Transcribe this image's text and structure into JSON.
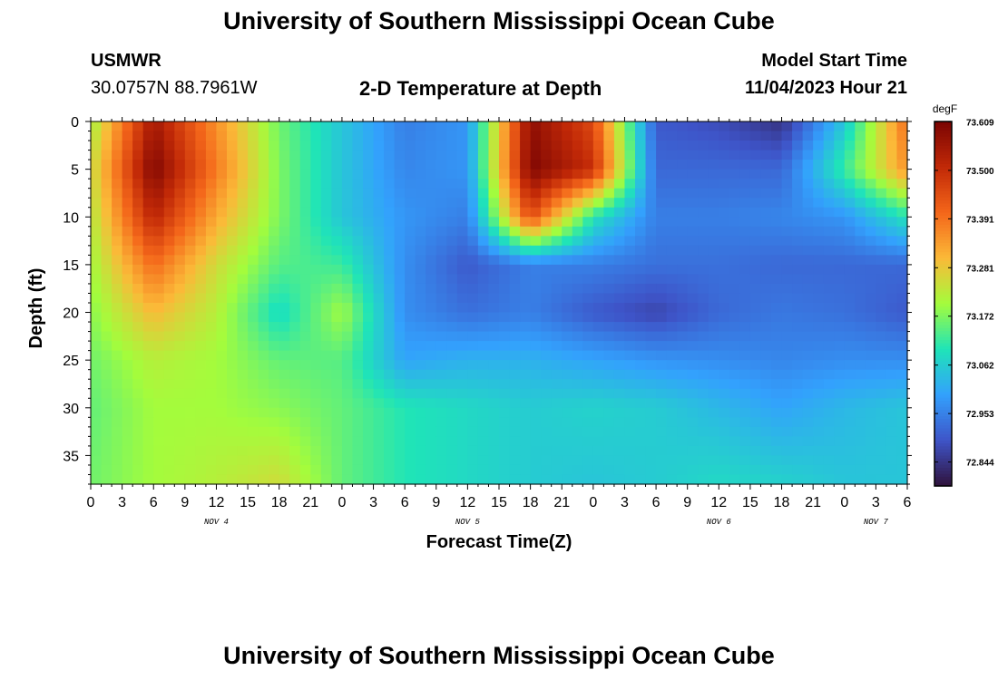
{
  "header": {
    "title": "University of Southern Mississippi Ocean Cube",
    "station": "USMWR",
    "coordinates": "30.0757N  88.7961W",
    "plot_title": "2-D Temperature at Depth",
    "model_start_label": "Model Start Time",
    "model_start_time": "11/04/2023 Hour 21"
  },
  "footer": {
    "title": "University of Southern Mississippi Ocean Cube"
  },
  "colors": {
    "colormap": [
      "#30123b",
      "#3e54c8",
      "#33a1fd",
      "#1fe4b8",
      "#a4fc3c",
      "#fbb938",
      "#f4661a",
      "#c12907",
      "#7a0403"
    ]
  },
  "chart_data": {
    "type": "heatmap",
    "xlabel": "Forecast Time(Z)",
    "ylabel": "Depth (ft)",
    "xlim": [
      0,
      78
    ],
    "ylim": [
      0,
      38
    ],
    "y_reversed": true,
    "x_ticks": [
      0,
      3,
      6,
      9,
      12,
      15,
      18,
      21,
      24,
      27,
      30,
      33,
      36,
      39,
      42,
      45,
      48,
      51,
      54,
      57,
      60,
      63,
      66,
      69,
      72,
      75,
      78
    ],
    "x_tick_labels": [
      "0",
      "3",
      "6",
      "9",
      "12",
      "15",
      "18",
      "21",
      "0",
      "3",
      "6",
      "9",
      "12",
      "15",
      "18",
      "21",
      "0",
      "3",
      "6",
      "9",
      "12",
      "15",
      "18",
      "21",
      "0",
      "3",
      "6"
    ],
    "y_ticks": [
      0,
      5,
      10,
      15,
      20,
      25,
      30,
      35
    ],
    "y_tick_labels": [
      "0",
      "5",
      "10",
      "15",
      "20",
      "25",
      "30",
      "35"
    ],
    "date_labels": [
      {
        "hour": 12,
        "text": "NOV 4"
      },
      {
        "hour": 36,
        "text": "NOV 5"
      },
      {
        "hour": 60,
        "text": "NOV 6"
      },
      {
        "hour": 75,
        "text": "NOV 7"
      }
    ],
    "colorbar": {
      "unit": "degF",
      "min": 72.79,
      "max": 73.61,
      "tick_values": [
        73.609,
        73.5,
        73.391,
        73.281,
        73.172,
        73.062,
        72.953,
        72.844
      ],
      "tick_labels": [
        "73.609",
        "73.500",
        "73.391",
        "73.281",
        "73.172",
        "73.062",
        "72.953",
        "72.844"
      ]
    },
    "grid_x_hours": [
      0,
      6,
      12,
      18,
      24,
      30,
      36,
      42,
      48,
      54,
      60,
      66,
      72,
      78
    ],
    "grid_depths_ft": [
      0,
      5,
      10,
      15,
      20,
      25,
      30,
      38
    ],
    "values": [
      [
        73.2,
        73.55,
        73.35,
        73.16,
        73.05,
        72.95,
        72.98,
        73.58,
        73.45,
        72.9,
        72.88,
        72.84,
        73.05,
        73.4
      ],
      [
        73.24,
        73.6,
        73.38,
        73.17,
        73.05,
        72.96,
        72.98,
        73.6,
        73.5,
        72.92,
        72.92,
        72.92,
        73.12,
        73.35
      ],
      [
        73.22,
        73.52,
        73.32,
        73.17,
        73.05,
        72.98,
        72.95,
        73.45,
        73.1,
        72.95,
        72.95,
        72.96,
        72.98,
        73.1
      ],
      [
        73.2,
        73.4,
        73.25,
        73.14,
        73.12,
        72.97,
        72.9,
        72.95,
        72.95,
        72.93,
        72.93,
        72.92,
        72.92,
        72.92
      ],
      [
        73.18,
        73.3,
        73.22,
        73.08,
        73.2,
        72.97,
        72.93,
        72.95,
        72.9,
        72.87,
        72.92,
        72.94,
        72.93,
        72.9
      ],
      [
        73.16,
        73.22,
        73.2,
        73.15,
        73.14,
        73.0,
        73.02,
        73.02,
        73.0,
        72.98,
        72.97,
        72.96,
        72.97,
        72.97
      ],
      [
        73.15,
        73.2,
        73.2,
        73.18,
        73.15,
        73.1,
        73.08,
        73.06,
        73.07,
        73.06,
        73.03,
        73.0,
        73.03,
        73.05
      ],
      [
        73.16,
        73.2,
        73.22,
        73.25,
        73.15,
        73.1,
        73.08,
        73.06,
        73.05,
        73.06,
        73.08,
        73.07,
        73.05,
        73.05
      ]
    ]
  }
}
